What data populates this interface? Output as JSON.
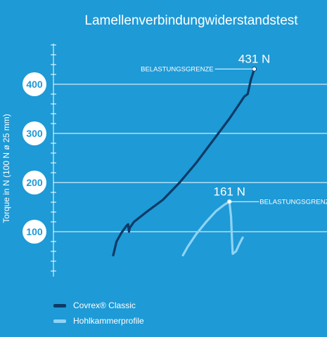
{
  "chart_data": {
    "type": "line",
    "title": "Lamellenverbindungwiderstandstest",
    "ylabel": "Torque in N (100 N ø 25 mm)",
    "ylim": [
      0,
      500
    ],
    "yticks": [
      100,
      200,
      300,
      400
    ],
    "grid": true,
    "series": [
      {
        "name": "Covrex® Classic",
        "color": "#0d3a66",
        "points": [
          [
            0,
            52
          ],
          [
            4,
            80
          ],
          [
            10,
            98
          ],
          [
            16,
            112
          ],
          [
            18,
            115
          ],
          [
            19,
            100
          ],
          [
            20,
            108
          ],
          [
            25,
            120
          ],
          [
            40,
            140
          ],
          [
            60,
            165
          ],
          [
            80,
            200
          ],
          [
            100,
            240
          ],
          [
            120,
            285
          ],
          [
            140,
            330
          ],
          [
            152,
            360
          ],
          [
            158,
            375
          ],
          [
            162,
            380
          ],
          [
            164,
            395
          ],
          [
            166,
            410
          ],
          [
            168,
            420
          ],
          [
            170,
            431
          ]
        ],
        "max_label": "431 N",
        "annotation": "BELASTUNGSGRENZE"
      },
      {
        "name": "Hohlkammerprofile",
        "color": "#8fd3f4",
        "points": [
          [
            84,
            52
          ],
          [
            90,
            70
          ],
          [
            100,
            95
          ],
          [
            112,
            120
          ],
          [
            124,
            142
          ],
          [
            134,
            155
          ],
          [
            140,
            161
          ],
          [
            142,
            130
          ],
          [
            143,
            90
          ],
          [
            144,
            55
          ],
          [
            148,
            60
          ],
          [
            152,
            75
          ],
          [
            156,
            88
          ]
        ],
        "max_label": "161 N",
        "annotation": "BELASTUNGSGRENZE"
      }
    ],
    "legend_position": "bottom-left"
  },
  "legend": {
    "items": [
      {
        "label": "Covrex® Classic",
        "color": "#0d3a66"
      },
      {
        "label": "Hohlkammerprofile",
        "color": "#8fd3f4"
      }
    ]
  }
}
